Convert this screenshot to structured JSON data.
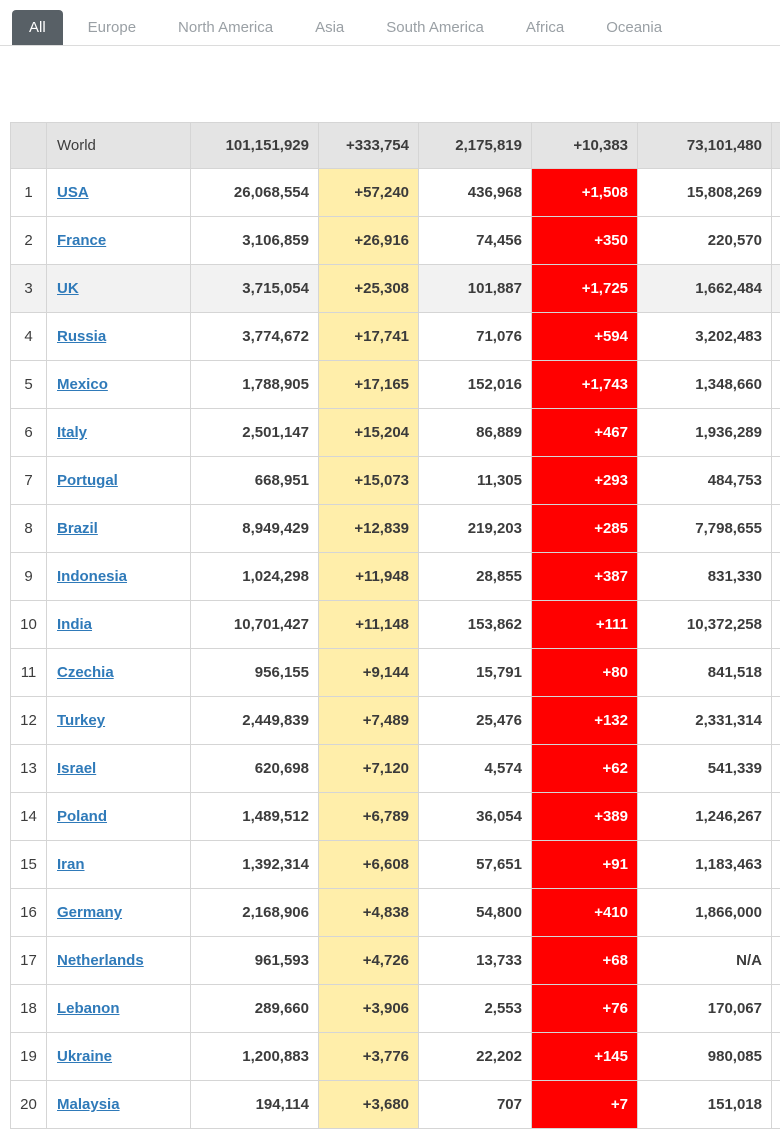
{
  "tabs": {
    "items": [
      {
        "label": "All",
        "active": true
      },
      {
        "label": "Europe",
        "active": false
      },
      {
        "label": "North America",
        "active": false
      },
      {
        "label": "Asia",
        "active": false
      },
      {
        "label": "South America",
        "active": false
      },
      {
        "label": "Africa",
        "active": false
      },
      {
        "label": "Oceania",
        "active": false
      }
    ]
  },
  "table": {
    "header": {
      "label": "World",
      "total_cases": "101,151,929",
      "new_cases": "+333,754",
      "total_deaths": "2,175,819",
      "new_deaths": "+10,383",
      "total_recovered": "73,101,480"
    },
    "rows": [
      {
        "rank": "1",
        "country": "USA",
        "total_cases": "26,068,554",
        "new_cases": "+57,240",
        "total_deaths": "436,968",
        "new_deaths": "+1,508",
        "total_recovered": "15,808,269",
        "highlighted": false
      },
      {
        "rank": "2",
        "country": "France",
        "total_cases": "3,106,859",
        "new_cases": "+26,916",
        "total_deaths": "74,456",
        "new_deaths": "+350",
        "total_recovered": "220,570",
        "highlighted": false
      },
      {
        "rank": "3",
        "country": "UK",
        "total_cases": "3,715,054",
        "new_cases": "+25,308",
        "total_deaths": "101,887",
        "new_deaths": "+1,725",
        "total_recovered": "1,662,484",
        "highlighted": true
      },
      {
        "rank": "4",
        "country": "Russia",
        "total_cases": "3,774,672",
        "new_cases": "+17,741",
        "total_deaths": "71,076",
        "new_deaths": "+594",
        "total_recovered": "3,202,483",
        "highlighted": false
      },
      {
        "rank": "5",
        "country": "Mexico",
        "total_cases": "1,788,905",
        "new_cases": "+17,165",
        "total_deaths": "152,016",
        "new_deaths": "+1,743",
        "total_recovered": "1,348,660",
        "highlighted": false
      },
      {
        "rank": "6",
        "country": "Italy",
        "total_cases": "2,501,147",
        "new_cases": "+15,204",
        "total_deaths": "86,889",
        "new_deaths": "+467",
        "total_recovered": "1,936,289",
        "highlighted": false
      },
      {
        "rank": "7",
        "country": "Portugal",
        "total_cases": "668,951",
        "new_cases": "+15,073",
        "total_deaths": "11,305",
        "new_deaths": "+293",
        "total_recovered": "484,753",
        "highlighted": false
      },
      {
        "rank": "8",
        "country": "Brazil",
        "total_cases": "8,949,429",
        "new_cases": "+12,839",
        "total_deaths": "219,203",
        "new_deaths": "+285",
        "total_recovered": "7,798,655",
        "highlighted": false
      },
      {
        "rank": "9",
        "country": "Indonesia",
        "total_cases": "1,024,298",
        "new_cases": "+11,948",
        "total_deaths": "28,855",
        "new_deaths": "+387",
        "total_recovered": "831,330",
        "highlighted": false
      },
      {
        "rank": "10",
        "country": "India",
        "total_cases": "10,701,427",
        "new_cases": "+11,148",
        "total_deaths": "153,862",
        "new_deaths": "+111",
        "total_recovered": "10,372,258",
        "highlighted": false
      },
      {
        "rank": "11",
        "country": "Czechia",
        "total_cases": "956,155",
        "new_cases": "+9,144",
        "total_deaths": "15,791",
        "new_deaths": "+80",
        "total_recovered": "841,518",
        "highlighted": false
      },
      {
        "rank": "12",
        "country": "Turkey",
        "total_cases": "2,449,839",
        "new_cases": "+7,489",
        "total_deaths": "25,476",
        "new_deaths": "+132",
        "total_recovered": "2,331,314",
        "highlighted": false
      },
      {
        "rank": "13",
        "country": "Israel",
        "total_cases": "620,698",
        "new_cases": "+7,120",
        "total_deaths": "4,574",
        "new_deaths": "+62",
        "total_recovered": "541,339",
        "highlighted": false
      },
      {
        "rank": "14",
        "country": "Poland",
        "total_cases": "1,489,512",
        "new_cases": "+6,789",
        "total_deaths": "36,054",
        "new_deaths": "+389",
        "total_recovered": "1,246,267",
        "highlighted": false
      },
      {
        "rank": "15",
        "country": "Iran",
        "total_cases": "1,392,314",
        "new_cases": "+6,608",
        "total_deaths": "57,651",
        "new_deaths": "+91",
        "total_recovered": "1,183,463",
        "highlighted": false
      },
      {
        "rank": "16",
        "country": "Germany",
        "total_cases": "2,168,906",
        "new_cases": "+4,838",
        "total_deaths": "54,800",
        "new_deaths": "+410",
        "total_recovered": "1,866,000",
        "highlighted": false
      },
      {
        "rank": "17",
        "country": "Netherlands",
        "total_cases": "961,593",
        "new_cases": "+4,726",
        "total_deaths": "13,733",
        "new_deaths": "+68",
        "total_recovered": "N/A",
        "highlighted": false
      },
      {
        "rank": "18",
        "country": "Lebanon",
        "total_cases": "289,660",
        "new_cases": "+3,906",
        "total_deaths": "2,553",
        "new_deaths": "+76",
        "total_recovered": "170,067",
        "highlighted": false
      },
      {
        "rank": "19",
        "country": "Ukraine",
        "total_cases": "1,200,883",
        "new_cases": "+3,776",
        "total_deaths": "22,202",
        "new_deaths": "+145",
        "total_recovered": "980,085",
        "highlighted": false
      },
      {
        "rank": "20",
        "country": "Malaysia",
        "total_cases": "194,114",
        "new_cases": "+3,680",
        "total_deaths": "707",
        "new_deaths": "+7",
        "total_recovered": "151,018",
        "highlighted": false
      }
    ]
  },
  "colors": {
    "active_tab_bg": "#586066",
    "link": "#2f7ab9",
    "new_cases_bg": "#ffeeaa",
    "new_deaths_bg": "#ff0000"
  }
}
